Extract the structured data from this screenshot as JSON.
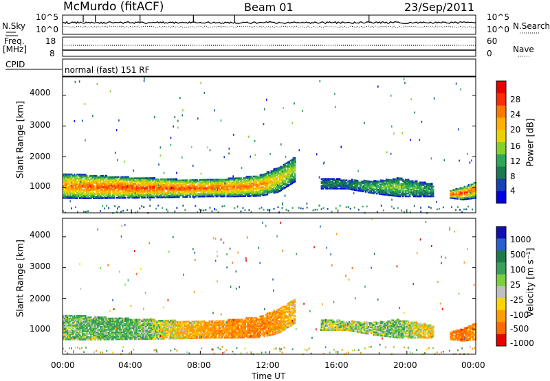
{
  "header": {
    "station": "McMurdo (fitACF)",
    "beam": "Beam 01",
    "date": "23/Sep/2011"
  },
  "noise_panel": {
    "left_label": "N.Sky",
    "right_label": "N.Search",
    "left_ticks": [
      "10^5",
      "10^0"
    ],
    "right_ticks": [
      "10^5",
      "10^0"
    ]
  },
  "freq_panel": {
    "left_label_1": "Freq.",
    "left_label_2": "[MHz]",
    "right_label": "Nave",
    "left_ticks": [
      "18",
      "8"
    ],
    "right_ticks": [
      "60",
      "0"
    ],
    "freq_mhz": 12.0,
    "nave": 40
  },
  "cpid": {
    "label": "CPID",
    "text": "normal (fast) 151 RF"
  },
  "axes": {
    "ylabel": "Slant Range [km]",
    "yticks": [
      "4000",
      "3000",
      "2000",
      "1000"
    ],
    "xlabel": "Time UT",
    "xticks": [
      "00:00",
      "04:00",
      "08:00",
      "12:00",
      "16:00",
      "20:00",
      "00:00"
    ]
  },
  "colorbars": {
    "power": {
      "title": "Power [dB]",
      "labels": [
        "28",
        "24",
        "20",
        "16",
        "12",
        "8",
        "4"
      ],
      "colors": [
        "#e80000",
        "#ff2a00",
        "#ff7800",
        "#ffb000",
        "#e8d400",
        "#86d02e",
        "#2da85a",
        "#1a7a50",
        "#1440b8",
        "#0000e0"
      ]
    },
    "velocity": {
      "title": "Velocity [m s⁻¹]",
      "labels": [
        "1000",
        "500",
        "100",
        "25",
        "-25",
        "-100",
        "-500",
        "-1000"
      ],
      "colors": [
        "#1010b0",
        "#2a5fd0",
        "#1f7a4a",
        "#3aa05a",
        "#7ccf3e",
        "#c0c0c0",
        "#ffd400",
        "#ff9c00",
        "#ff6a00",
        "#e80000"
      ]
    }
  },
  "chart_data": [
    {
      "type": "heatmap",
      "title": "Power [dB]",
      "xlabel": "Time UT",
      "ylabel": "Slant Range [km]",
      "xlim": [
        "00:00",
        "24:00"
      ],
      "ylim": [
        180,
        4600
      ],
      "clim": [
        0,
        30
      ],
      "bands": [
        {
          "t": [
            0,
            1.5,
            3,
            5,
            7,
            8.5,
            10,
            11.5,
            12.5,
            13.5
          ],
          "lower": [
            650,
            640,
            650,
            660,
            680,
            700,
            700,
            720,
            850,
            1200
          ],
          "upper": [
            1450,
            1400,
            1350,
            1300,
            1250,
            1250,
            1300,
            1400,
            1650,
            2000
          ],
          "core": [
            22,
            24,
            25,
            25,
            24,
            24,
            23,
            22,
            18,
            14
          ]
        },
        {
          "t": [
            15,
            16.5,
            18,
            19.5,
            20.5,
            21.5
          ],
          "lower": [
            950,
            950,
            800,
            700,
            700,
            700
          ],
          "upper": [
            1300,
            1250,
            1200,
            1300,
            1200,
            1100
          ],
          "core": [
            8,
            8,
            12,
            14,
            12,
            10
          ]
        },
        {
          "t": [
            22.5,
            23.2,
            24
          ],
          "lower": [
            650,
            600,
            650
          ],
          "upper": [
            900,
            1000,
            1200
          ],
          "core": [
            24,
            26,
            22
          ]
        }
      ]
    },
    {
      "type": "heatmap",
      "title": "Velocity [m s⁻¹]",
      "xlabel": "Time UT",
      "ylabel": "Slant Range [km]",
      "xlim": [
        "00:00",
        "24:00"
      ],
      "ylim": [
        180,
        4600
      ],
      "clim": [
        -1000,
        1000
      ],
      "bands": [
        {
          "t": [
            0,
            1.5,
            3,
            5,
            7,
            8.5,
            10,
            11.5,
            12.5,
            13.5
          ],
          "lower": [
            650,
            640,
            650,
            660,
            680,
            700,
            700,
            720,
            850,
            1200
          ],
          "upper": [
            1450,
            1400,
            1350,
            1300,
            1250,
            1250,
            1300,
            1400,
            1650,
            2000
          ],
          "core": [
            60,
            120,
            150,
            80,
            -120,
            -200,
            -250,
            -300,
            -200,
            -100
          ]
        },
        {
          "t": [
            15,
            16.5,
            18,
            19.5,
            20.5,
            21.5
          ],
          "lower": [
            950,
            950,
            800,
            700,
            700,
            700
          ],
          "upper": [
            1300,
            1250,
            1200,
            1300,
            1200,
            1100
          ],
          "core": [
            40,
            10,
            60,
            100,
            -40,
            -60
          ]
        },
        {
          "t": [
            22.5,
            23.2,
            24
          ],
          "lower": [
            650,
            600,
            650
          ],
          "upper": [
            900,
            1000,
            1200
          ],
          "core": [
            -300,
            -400,
            -200
          ]
        }
      ]
    }
  ]
}
